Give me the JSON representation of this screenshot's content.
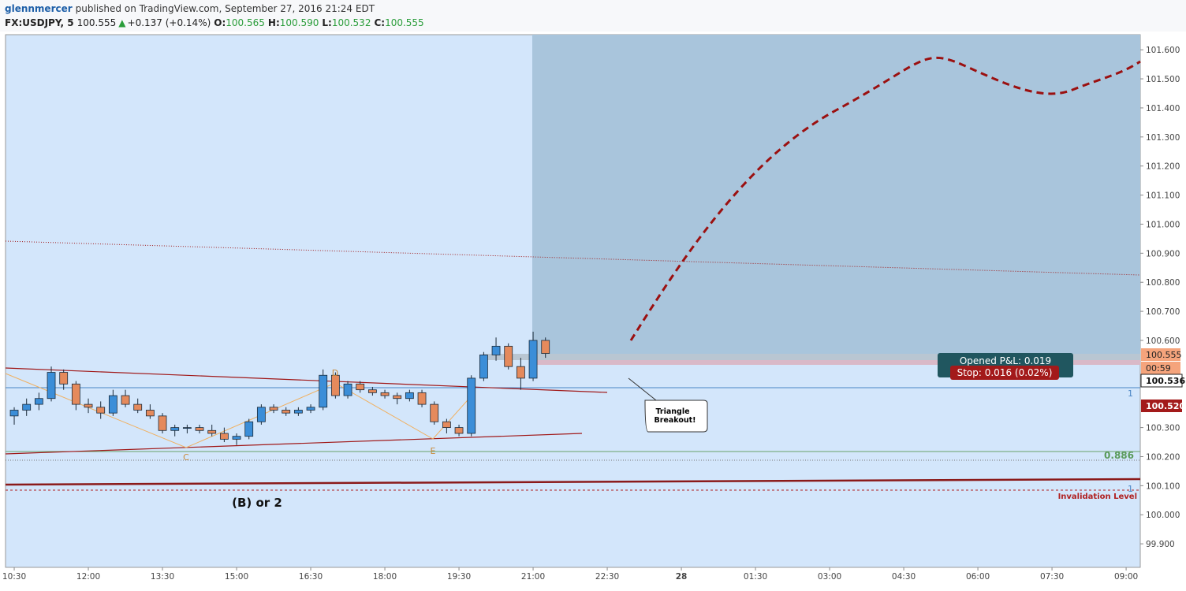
{
  "header": {
    "user": "glennmercer",
    "published": "published on TradingView.com, September 27, 2016 21:24 EDT",
    "symbol": "FX:USDJPY, 5",
    "last": "100.555",
    "arrow": "▲",
    "change": "+0.137 (+0.14%)",
    "o_label": "O:",
    "open": "100.565",
    "h_label": "H:",
    "high": "100.590",
    "l_label": "L:",
    "low": "100.532",
    "c_label": "C:",
    "close": "100.555"
  },
  "chart_data": {
    "type": "candlestick",
    "up_color": "#3b8ed8",
    "down_color": "#e58a5c",
    "grid": false,
    "x": [
      10.5,
      10.75,
      11,
      11.25,
      11.5,
      11.75,
      12,
      12.25,
      12.5,
      12.75,
      13,
      13.25,
      13.5,
      13.75,
      14,
      14.25,
      14.5,
      14.75,
      15,
      15.25,
      15.5,
      15.75,
      16,
      16.25,
      16.5,
      16.75,
      17,
      17.25,
      17.5,
      17.75,
      18,
      18.25,
      18.5,
      18.75,
      19,
      19.25,
      19.5,
      19.75,
      20,
      20.25,
      20.5,
      20.75,
      21,
      21.25
    ],
    "open": [
      100.34,
      100.36,
      100.38,
      100.4,
      100.49,
      100.45,
      100.38,
      100.37,
      100.35,
      100.41,
      100.38,
      100.36,
      100.34,
      100.29,
      100.3,
      100.3,
      100.29,
      100.28,
      100.26,
      100.27,
      100.32,
      100.37,
      100.36,
      100.35,
      100.36,
      100.37,
      100.48,
      100.41,
      100.45,
      100.43,
      100.42,
      100.41,
      100.4,
      100.42,
      100.38,
      100.32,
      100.3,
      100.28,
      100.47,
      100.55,
      100.58,
      100.51,
      100.47,
      100.6
    ],
    "high": [
      100.37,
      100.4,
      100.42,
      100.51,
      100.5,
      100.46,
      100.4,
      100.39,
      100.43,
      100.43,
      100.4,
      100.38,
      100.35,
      100.31,
      100.31,
      100.31,
      100.31,
      100.3,
      100.28,
      100.33,
      100.38,
      100.38,
      100.37,
      100.37,
      100.38,
      100.5,
      100.49,
      100.46,
      100.46,
      100.44,
      100.43,
      100.42,
      100.43,
      100.43,
      100.39,
      100.33,
      100.31,
      100.48,
      100.56,
      100.61,
      100.59,
      100.54,
      100.63,
      100.61
    ],
    "low": [
      100.31,
      100.34,
      100.36,
      100.39,
      100.43,
      100.36,
      100.35,
      100.33,
      100.34,
      100.37,
      100.35,
      100.33,
      100.28,
      100.27,
      100.28,
      100.28,
      100.27,
      100.25,
      100.24,
      100.26,
      100.31,
      100.35,
      100.34,
      100.34,
      100.35,
      100.36,
      100.4,
      100.4,
      100.42,
      100.41,
      100.4,
      100.38,
      100.39,
      100.37,
      100.31,
      100.28,
      100.27,
      100.27,
      100.46,
      100.53,
      100.5,
      100.43,
      100.46,
      100.54
    ],
    "close": [
      100.36,
      100.38,
      100.4,
      100.49,
      100.45,
      100.38,
      100.37,
      100.35,
      100.41,
      100.38,
      100.36,
      100.34,
      100.29,
      100.3,
      100.3,
      100.29,
      100.28,
      100.26,
      100.27,
      100.32,
      100.37,
      100.36,
      100.35,
      100.36,
      100.37,
      100.48,
      100.41,
      100.45,
      100.43,
      100.42,
      100.41,
      100.4,
      100.42,
      100.38,
      100.32,
      100.3,
      100.28,
      100.47,
      100.55,
      100.58,
      100.51,
      100.47,
      100.6,
      100.555
    ],
    "xlim": [
      10.324,
      33.286
    ],
    "ylim": [
      99.819,
      101.652
    ],
    "xticks": [
      {
        "value": 10.5,
        "label": "10:30"
      },
      {
        "value": 12,
        "label": "12:00"
      },
      {
        "value": 13.5,
        "label": "13:30"
      },
      {
        "value": 15,
        "label": "15:00"
      },
      {
        "value": 16.5,
        "label": "16:30"
      },
      {
        "value": 18,
        "label": "18:00"
      },
      {
        "value": 19.5,
        "label": "19:30"
      },
      {
        "value": 21,
        "label": "21:00"
      },
      {
        "value": 22.5,
        "label": "22:30"
      },
      {
        "value": 24,
        "label": "28"
      },
      {
        "value": 25.5,
        "label": "01:30"
      },
      {
        "value": 27,
        "label": "03:00"
      },
      {
        "value": 28.5,
        "label": "04:30"
      },
      {
        "value": 30,
        "label": "06:00"
      },
      {
        "value": 31.5,
        "label": "07:30"
      },
      {
        "value": 33,
        "label": "09:00"
      }
    ],
    "yticks": [
      {
        "value": 101.6,
        "label": "101.600"
      },
      {
        "value": 101.5,
        "label": "101.500"
      },
      {
        "value": 101.4,
        "label": "101.400"
      },
      {
        "value": 101.3,
        "label": "101.300"
      },
      {
        "value": 101.2,
        "label": "101.200"
      },
      {
        "value": 101.1,
        "label": "101.100"
      },
      {
        "value": 101,
        "label": "101.000"
      },
      {
        "value": 100.9,
        "label": "100.900"
      },
      {
        "value": 100.8,
        "label": "100.800"
      },
      {
        "value": 100.7,
        "label": "100.700"
      },
      {
        "value": 100.6,
        "label": "100.600"
      },
      {
        "value": 100.3,
        "label": "100.300"
      },
      {
        "value": 100.2,
        "label": "100.200"
      },
      {
        "value": 100.1,
        "label": "100.100"
      },
      {
        "value": 100,
        "label": "100.000"
      },
      {
        "value": 99.9,
        "label": "99.900"
      }
    ],
    "badges": [
      "100.555",
      "00:59",
      "100.536",
      "100.520"
    ],
    "annotations": {
      "triangle": "Triangle",
      "breakout": "Breakout!",
      "wave": "(B) or 2",
      "c": "C",
      "d": "D",
      "e": "E",
      "fib": "0.886",
      "one_a": "1",
      "one_b": "1",
      "invalidation": "Invalidation Level",
      "pnl": "Opened P&L: 0.019",
      "stop": "Stop: 0.016 (0.02%)"
    }
  }
}
